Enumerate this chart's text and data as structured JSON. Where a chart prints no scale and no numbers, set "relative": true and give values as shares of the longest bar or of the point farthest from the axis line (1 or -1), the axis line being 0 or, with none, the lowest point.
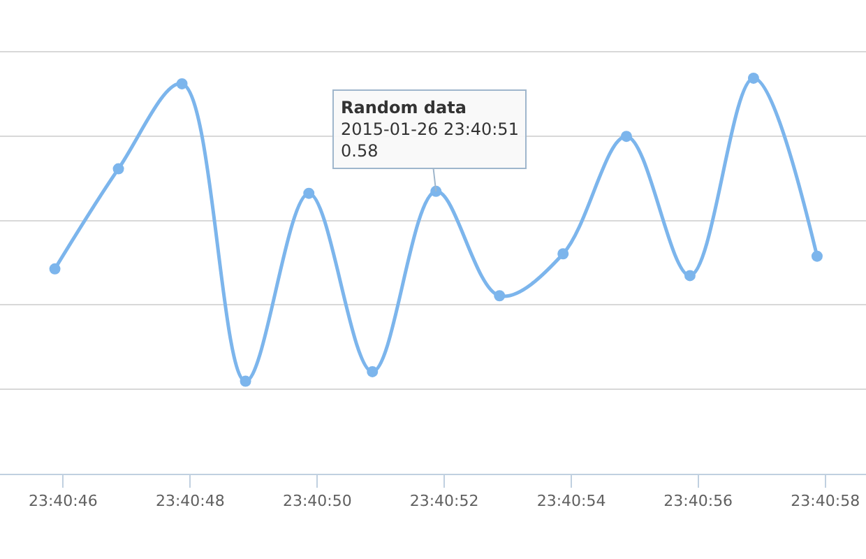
{
  "chart_data": {
    "type": "line",
    "relative": true,
    "x": [
      23.679408,
      23.679686,
      23.679964,
      23.680242,
      23.680519,
      23.680797,
      23.681075,
      23.681353,
      23.681631,
      23.681908,
      23.682186,
      23.682464,
      23.682742
    ],
    "series": [
      {
        "color": "#7cb5ec",
        "values": [
          0.518,
          0.771,
          0.986,
          0.234,
          0.709,
          0.258,
          0.714,
          0.45,
          0.556,
          0.853,
          0.501,
          1.0,
          0.55
        ]
      }
    ],
    "xlim": [
      23.679168,
      23.682956
    ],
    "xticks": [
      {
        "value": 23.679444,
        "label": "23:40:46"
      },
      {
        "value": 23.68,
        "label": "23:40:48"
      },
      {
        "value": 23.680556,
        "label": "23:40:50"
      },
      {
        "value": 23.681111,
        "label": "23:40:52"
      },
      {
        "value": 23.681667,
        "label": "23:40:54"
      },
      {
        "value": 23.682222,
        "label": "23:40:56"
      },
      {
        "value": 23.682778,
        "label": "23:40:58"
      }
    ],
    "annotations": [
      {
        "text": "Random data\n2015-01-26 23:40:51\n0.58",
        "x": 23.681075,
        "y": 0.714
      }
    ],
    "grid": "y",
    "marker": "circle",
    "line_style": "solid"
  }
}
